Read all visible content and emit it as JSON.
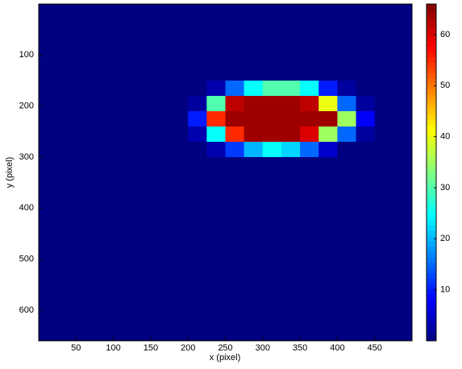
{
  "chart_data": {
    "type": "heatmap",
    "colormap": "jet",
    "xlabel": "x (pixel)",
    "ylabel": "y (pixel)",
    "x": [
      12.5,
      37.5,
      62.5,
      87.5,
      112.5,
      137.5,
      162.5,
      187.5,
      212.5,
      237.5,
      262.5,
      287.5,
      312.5,
      337.5,
      362.5,
      387.5,
      412.5,
      437.5,
      462.5,
      487.5
    ],
    "y": [
      15,
      45,
      75,
      105,
      135,
      165,
      195,
      225,
      255,
      285,
      315,
      345,
      375,
      405,
      435,
      465,
      495,
      525,
      555,
      585,
      615,
      645
    ],
    "values": [
      [
        0,
        0,
        0,
        0,
        0,
        0,
        0,
        0,
        0,
        0,
        0,
        0,
        0,
        0,
        0,
        0,
        0,
        0,
        0,
        0
      ],
      [
        0,
        0,
        0,
        0,
        0,
        0,
        0,
        0,
        0,
        0,
        0,
        0,
        0,
        0,
        0,
        0,
        0,
        0,
        0,
        0
      ],
      [
        0,
        0,
        0,
        0,
        0,
        0,
        0,
        0,
        0,
        0,
        0,
        0,
        0,
        0,
        0,
        0,
        0,
        0,
        0,
        0
      ],
      [
        0,
        0,
        0,
        0,
        0,
        0,
        0,
        0,
        0,
        0,
        0,
        0,
        0,
        0,
        0,
        0,
        0,
        0,
        0,
        0
      ],
      [
        0,
        0,
        0,
        0,
        0,
        0,
        0,
        0,
        0,
        0,
        0,
        0,
        0,
        0,
        0,
        0,
        0,
        0,
        0,
        0
      ],
      [
        0,
        0,
        0,
        0,
        0,
        0,
        0,
        0,
        0,
        3,
        15,
        25,
        30,
        30,
        25,
        10,
        2,
        0,
        0,
        0
      ],
      [
        0,
        0,
        0,
        0,
        0,
        0,
        0,
        0,
        2,
        30,
        62,
        64,
        64,
        64,
        62,
        40,
        15,
        2,
        0,
        0
      ],
      [
        0,
        0,
        0,
        0,
        0,
        0,
        0,
        0,
        10,
        55,
        64,
        64,
        64,
        64,
        64,
        64,
        35,
        8,
        0,
        0
      ],
      [
        0,
        0,
        0,
        0,
        0,
        0,
        0,
        0,
        3,
        25,
        55,
        64,
        64,
        64,
        60,
        35,
        15,
        2,
        0,
        0
      ],
      [
        0,
        0,
        0,
        0,
        0,
        0,
        0,
        0,
        0,
        3,
        12,
        20,
        25,
        22,
        15,
        5,
        0,
        0,
        0,
        0
      ],
      [
        0,
        0,
        0,
        0,
        0,
        0,
        0,
        0,
        0,
        0,
        0,
        0,
        0,
        0,
        0,
        0,
        0,
        0,
        0,
        0
      ],
      [
        0,
        0,
        0,
        0,
        0,
        0,
        0,
        0,
        0,
        0,
        0,
        0,
        0,
        0,
        0,
        0,
        0,
        0,
        0,
        0
      ],
      [
        0,
        0,
        0,
        0,
        0,
        0,
        0,
        0,
        0,
        0,
        0,
        0,
        0,
        0,
        0,
        0,
        0,
        0,
        0,
        0
      ],
      [
        0,
        0,
        0,
        0,
        0,
        0,
        0,
        0,
        0,
        0,
        0,
        0,
        0,
        0,
        0,
        0,
        0,
        0,
        0,
        0
      ],
      [
        0,
        0,
        0,
        0,
        0,
        0,
        0,
        0,
        0,
        0,
        0,
        0,
        0,
        0,
        0,
        0,
        0,
        0,
        0,
        0
      ],
      [
        0,
        0,
        0,
        0,
        0,
        0,
        0,
        0,
        0,
        0,
        0,
        0,
        0,
        0,
        0,
        0,
        0,
        0,
        0,
        0
      ],
      [
        0,
        0,
        0,
        0,
        0,
        0,
        0,
        0,
        0,
        0,
        0,
        0,
        0,
        0,
        0,
        0,
        0,
        0,
        0,
        0
      ],
      [
        0,
        0,
        0,
        0,
        0,
        0,
        0,
        0,
        0,
        0,
        0,
        0,
        0,
        0,
        0,
        0,
        0,
        0,
        0,
        0
      ],
      [
        0,
        0,
        0,
        0,
        0,
        0,
        0,
        0,
        0,
        0,
        0,
        0,
        0,
        0,
        0,
        0,
        0,
        0,
        0,
        0
      ],
      [
        0,
        0,
        0,
        0,
        0,
        0,
        0,
        0,
        0,
        0,
        0,
        0,
        0,
        0,
        0,
        0,
        0,
        0,
        0,
        0
      ],
      [
        0,
        0,
        0,
        0,
        0,
        0,
        0,
        0,
        0,
        0,
        0,
        0,
        0,
        0,
        0,
        0,
        0,
        0,
        0,
        0
      ],
      [
        0,
        0,
        0,
        0,
        0,
        0,
        0,
        0,
        0,
        0,
        0,
        0,
        0,
        0,
        0,
        0,
        0,
        0,
        0,
        0
      ]
    ],
    "xlim": [
      0,
      500
    ],
    "ylim": [
      0,
      660
    ],
    "y_reversed": true,
    "xticks": [
      50,
      100,
      150,
      200,
      250,
      300,
      350,
      400,
      450
    ],
    "yticks": [
      100,
      200,
      300,
      400,
      500,
      600
    ],
    "clim": [
      0,
      66
    ],
    "cticks": [
      10,
      20,
      30,
      40,
      50,
      60
    ]
  }
}
